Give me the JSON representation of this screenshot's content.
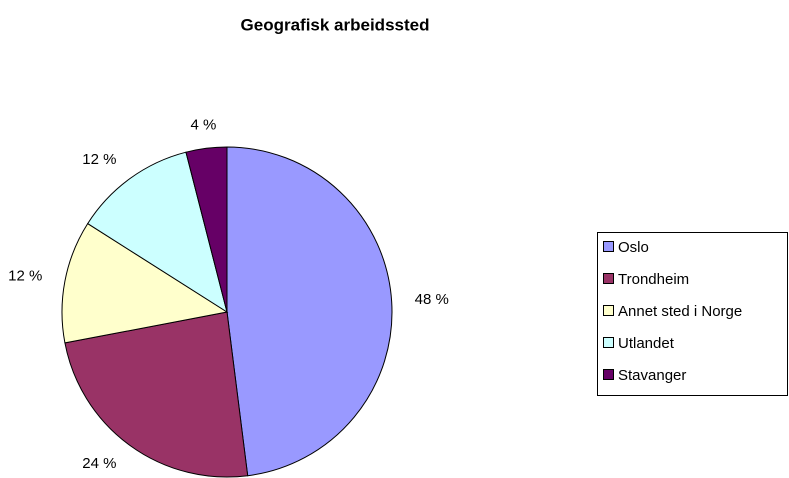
{
  "chart_data": {
    "type": "pie",
    "title": "Geografisk arbeidssted",
    "categories": [
      "Oslo",
      "Trondheim",
      "Annet sted i Norge",
      "Utlandet",
      "Stavanger"
    ],
    "values": [
      48,
      24,
      12,
      12,
      4
    ],
    "value_labels": [
      "48 %",
      "24 %",
      "12 %",
      "12 %",
      "4 %"
    ],
    "colors": [
      "#9999ff",
      "#993366",
      "#ffffcc",
      "#ccffff",
      "#660066"
    ],
    "legend": "right"
  }
}
